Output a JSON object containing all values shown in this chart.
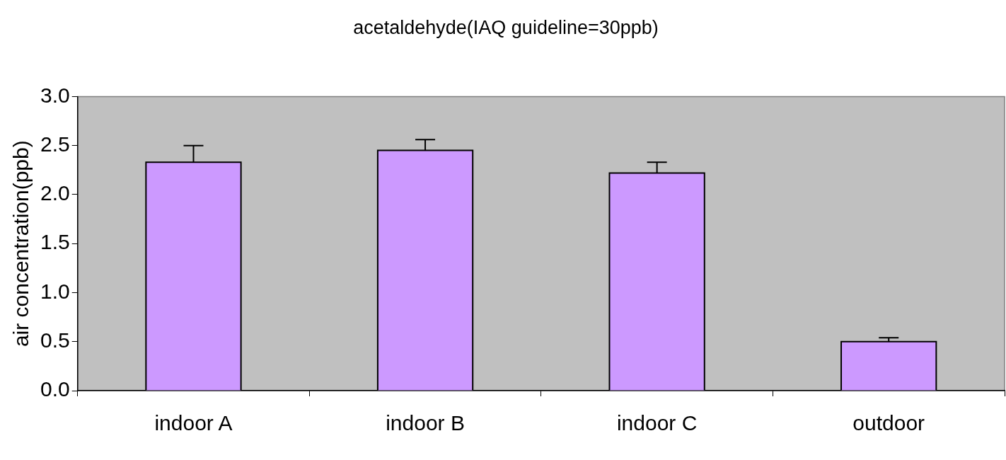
{
  "chart_data": {
    "type": "bar",
    "title": "acetaldehyde(IAQ guideline=30ppb)",
    "ylabel": "air concentration(ppb)",
    "categories": [
      "indoor A",
      "indoor B",
      "indoor C",
      "outdoor"
    ],
    "series": [
      {
        "color": "#cc99ff",
        "values": [
          2.33,
          2.45,
          2.22,
          0.5
        ],
        "errors": [
          [
            2.33,
            2.5
          ],
          [
            2.45,
            2.56
          ],
          [
            2.22,
            2.33
          ],
          [
            0.5,
            0.54
          ]
        ]
      }
    ],
    "ylim": [
      0,
      3
    ],
    "yticks": [
      {
        "value": 0,
        "label": "0.0"
      },
      {
        "value": 0.5,
        "label": "0.5"
      },
      {
        "value": 1,
        "label": "1.0"
      },
      {
        "value": 1.5,
        "label": "1.5"
      },
      {
        "value": 2,
        "label": "2.0"
      },
      {
        "value": 2.5,
        "label": "2.5"
      },
      {
        "value": 3,
        "label": "3.0"
      }
    ],
    "grid": false,
    "legend": false
  }
}
